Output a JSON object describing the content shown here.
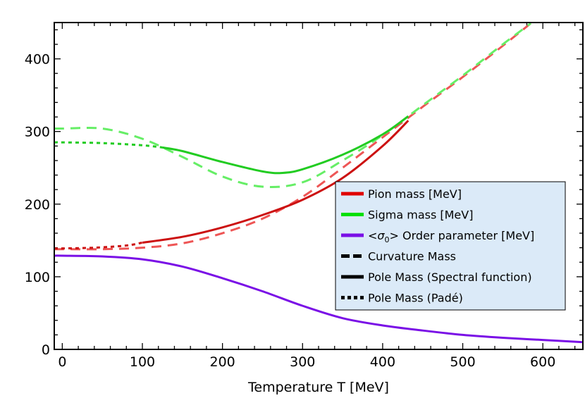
{
  "chart_data": {
    "type": "line",
    "xlabel": "Temperature T [MeV]",
    "ylabel": "",
    "xlim": [
      -10,
      650
    ],
    "ylim": [
      0,
      450
    ],
    "xticks": [
      0,
      100,
      200,
      300,
      400,
      500,
      600
    ],
    "yticks": [
      0,
      100,
      200,
      300,
      400
    ],
    "grid": false,
    "legend_position": "center-right",
    "legend": [
      {
        "label": "Pion mass [MeV]",
        "color": "#e00000",
        "style": "solid"
      },
      {
        "label": "Sigma mass [MeV]",
        "color": "#00e000",
        "style": "solid"
      },
      {
        "label_parts": [
          "<",
          "σ",
          "0",
          "> Order parameter [MeV]"
        ],
        "label": "<σ0> Order parameter [MeV]",
        "color": "#7a10e6",
        "style": "solid"
      },
      {
        "label": "Curvature Mass",
        "color": "#000000",
        "style": "dashed"
      },
      {
        "label": "Pole Mass (Spectral function)",
        "color": "#000000",
        "style": "solid"
      },
      {
        "label": "Pole Mass (Padé)",
        "color": "#000000",
        "style": "dotted"
      }
    ],
    "series": [
      {
        "id": "pion-curvature",
        "color": "#ee5555",
        "style": "dashed",
        "x": [
          -10,
          0,
          50,
          100,
          150,
          200,
          250,
          300,
          350,
          400,
          450,
          500,
          550,
          585
        ],
        "y": [
          138,
          138,
          138,
          140,
          146,
          160,
          180,
          210,
          250,
          292,
          334,
          375,
          418,
          449
        ]
      },
      {
        "id": "pion-pole-pade",
        "color": "#cc1111",
        "style": "dotted",
        "x": [
          -10,
          0,
          40,
          80,
          100
        ],
        "y": [
          139,
          139,
          140,
          143,
          147
        ]
      },
      {
        "id": "pion-pole-spectral",
        "color": "#cc1111",
        "style": "solid",
        "x": [
          100,
          150,
          200,
          250,
          300,
          350,
          400,
          432
        ],
        "y": [
          147,
          155,
          168,
          185,
          206,
          236,
          280,
          315
        ]
      },
      {
        "id": "sigma-curvature",
        "color": "#66ee66",
        "style": "dashed",
        "x": [
          -10,
          0,
          50,
          100,
          150,
          200,
          250,
          300,
          350,
          400,
          450,
          500,
          550,
          585
        ],
        "y": [
          304,
          304,
          304,
          290,
          265,
          238,
          224,
          230,
          260,
          295,
          336,
          377,
          420,
          449
        ]
      },
      {
        "id": "sigma-pole-pade",
        "color": "#22cc22",
        "style": "dotted",
        "x": [
          -10,
          0,
          50,
          100,
          125
        ],
        "y": [
          285,
          285,
          284,
          281,
          278
        ]
      },
      {
        "id": "sigma-pole-spectral",
        "color": "#22cc22",
        "style": "solid",
        "x": [
          125,
          150,
          200,
          250,
          275,
          300,
          350,
          400,
          432
        ],
        "y": [
          278,
          273,
          258,
          245,
          243,
          248,
          268,
          296,
          321
        ]
      },
      {
        "id": "order-parameter",
        "color": "#7a10e6",
        "style": "solid",
        "x": [
          -10,
          0,
          50,
          100,
          150,
          200,
          250,
          300,
          350,
          400,
          450,
          500,
          550,
          600,
          650
        ],
        "y": [
          129,
          129,
          128,
          124,
          114,
          98,
          80,
          60,
          43,
          33,
          26,
          20,
          16,
          13,
          10
        ]
      }
    ]
  }
}
